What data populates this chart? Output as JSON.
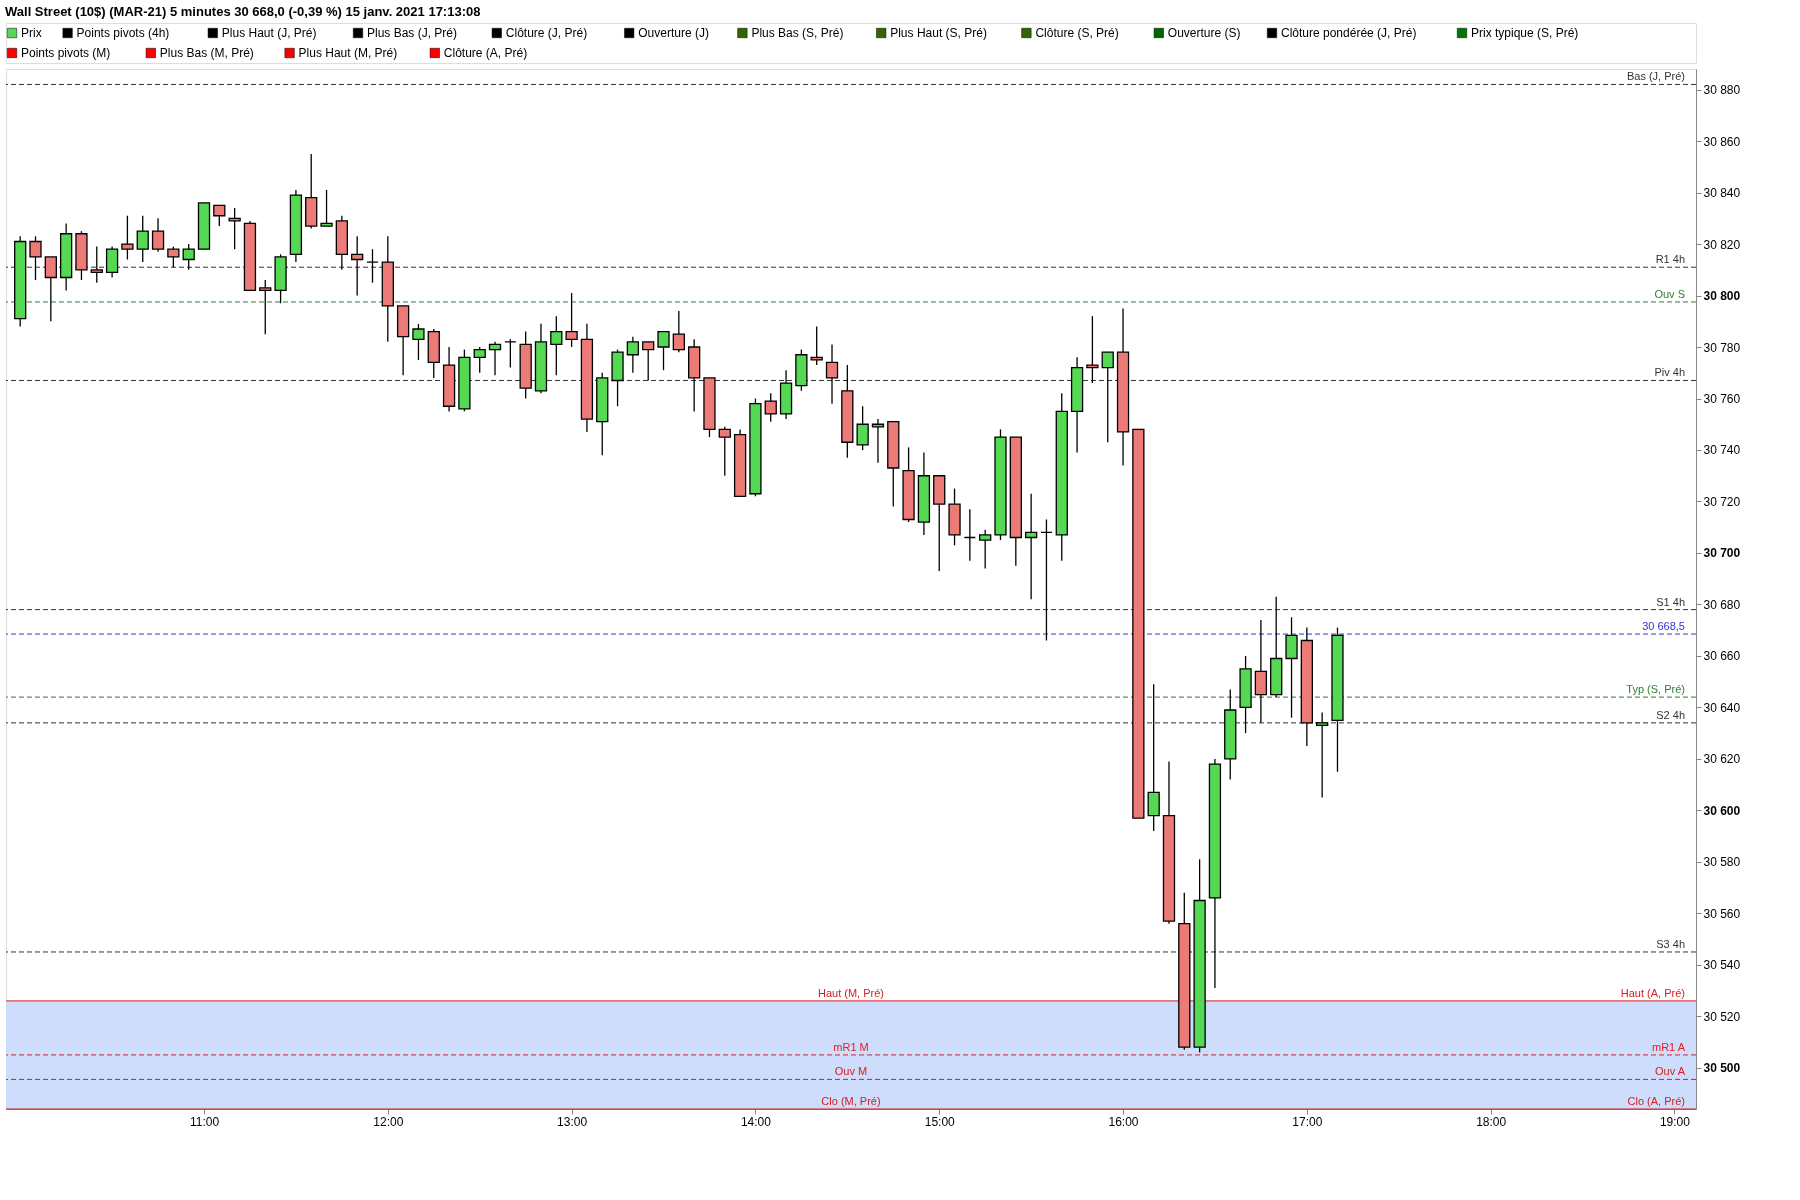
{
  "chart_data": {
    "type": "candlestick",
    "title": "Wall Street (10$) (MAR-21) 5 minutes 30 668,0 (-0,39 %) 15 janv. 2021 17:13:08",
    "legend": "top",
    "series": [
      {
        "name": "Prix",
        "color": "#55d955",
        "values": [
          null,
          null,
          null,
          null,
          null,
          null,
          null,
          null,
          null,
          null,
          null,
          null,
          null,
          null,
          null,
          null,
          null,
          null,
          null,
          null,
          null,
          null,
          null,
          null,
          null,
          null,
          null,
          null,
          null,
          null,
          null,
          null,
          null,
          null,
          null,
          null,
          null,
          null,
          null,
          null,
          null,
          null,
          null,
          null,
          null,
          null,
          null,
          null,
          null,
          null,
          null,
          null,
          null,
          null,
          null,
          null,
          null,
          null,
          null,
          null,
          null,
          null,
          null,
          null,
          null,
          null,
          null,
          null,
          null,
          null,
          null,
          null,
          null,
          null,
          null,
          null,
          null,
          null,
          null,
          null,
          null,
          null,
          null,
          null,
          null,
          null,
          null
        ]
      },
      {
        "name": "Points pivots (4h)",
        "color": "#000000",
        "values": [
          null,
          null,
          null,
          null,
          null,
          null,
          null,
          null,
          null,
          null,
          null,
          null,
          null,
          null,
          null,
          null,
          null,
          null,
          null,
          null,
          null,
          null,
          null,
          null,
          null,
          null,
          null,
          null,
          null,
          null,
          null,
          null,
          null,
          null,
          null,
          null,
          null,
          null,
          null,
          null,
          null,
          null,
          null,
          null,
          null,
          null,
          null,
          null,
          null,
          null,
          null,
          null,
          null,
          null,
          null,
          null,
          null,
          null,
          null,
          null,
          null,
          null,
          null,
          null,
          null,
          null,
          null,
          null,
          null,
          null,
          null,
          null,
          null,
          null,
          null,
          null,
          null,
          null,
          null,
          null,
          null,
          null,
          null,
          null,
          null,
          null,
          null
        ]
      },
      {
        "name": "Plus Haut (J, Pré)",
        "color": "#000000",
        "values": [
          null,
          null,
          null,
          null,
          null,
          null,
          null,
          null,
          null,
          null,
          null,
          null,
          null,
          null,
          null,
          null,
          null,
          null,
          null,
          null,
          null,
          null,
          null,
          null,
          null,
          null,
          null,
          null,
          null,
          null,
          null,
          null,
          null,
          null,
          null,
          null,
          null,
          null,
          null,
          null,
          null,
          null,
          null,
          null,
          null,
          null,
          null,
          null,
          null,
          null,
          null,
          null,
          null,
          null,
          null,
          null,
          null,
          null,
          null,
          null,
          null,
          null,
          null,
          null,
          null,
          null,
          null,
          null,
          null,
          null,
          null,
          null,
          null,
          null,
          null,
          null,
          null,
          null,
          null,
          null,
          null,
          null,
          null,
          null,
          null,
          null,
          null
        ]
      },
      {
        "name": "Plus Bas (J, Pré)",
        "color": "#000000",
        "values": [
          null,
          null,
          null,
          null,
          null,
          null,
          null,
          null,
          null,
          null,
          null,
          null,
          null,
          null,
          null,
          null,
          null,
          null,
          null,
          null,
          null,
          null,
          null,
          null,
          null,
          null,
          null,
          null,
          null,
          null,
          null,
          null,
          null,
          null,
          null,
          null,
          null,
          null,
          null,
          null,
          null,
          null,
          null,
          null,
          null,
          null,
          null,
          null,
          null,
          null,
          null,
          null,
          null,
          null,
          null,
          null,
          null,
          null,
          null,
          null,
          null,
          null,
          null,
          null,
          null,
          null,
          null,
          null,
          null,
          null,
          null,
          null,
          null,
          null,
          null,
          null,
          null,
          null,
          null,
          null,
          null,
          null,
          null,
          null,
          null,
          null,
          null
        ]
      },
      {
        "name": "Clôture (J, Pré)",
        "color": "#000000",
        "values": [
          null,
          null,
          null,
          null,
          null,
          null,
          null,
          null,
          null,
          null,
          null,
          null,
          null,
          null,
          null,
          null,
          null,
          null,
          null,
          null,
          null,
          null,
          null,
          null,
          null,
          null,
          null,
          null,
          null,
          null,
          null,
          null,
          null,
          null,
          null,
          null,
          null,
          null,
          null,
          null,
          null,
          null,
          null,
          null,
          null,
          null,
          null,
          null,
          null,
          null,
          null,
          null,
          null,
          null,
          null,
          null,
          null,
          null,
          null,
          null,
          null,
          null,
          null,
          null,
          null,
          null,
          null,
          null,
          null,
          null,
          null,
          null,
          null,
          null,
          null,
          null,
          null,
          null,
          null,
          null,
          null,
          null,
          null,
          null,
          null,
          null,
          null
        ]
      },
      {
        "name": "Ouverture (J)",
        "color": "#000000",
        "values": [
          null,
          null,
          null,
          null,
          null,
          null,
          null,
          null,
          null,
          null,
          null,
          null,
          null,
          null,
          null,
          null,
          null,
          null,
          null,
          null,
          null,
          null,
          null,
          null,
          null,
          null,
          null,
          null,
          null,
          null,
          null,
          null,
          null,
          null,
          null,
          null,
          null,
          null,
          null,
          null,
          null,
          null,
          null,
          null,
          null,
          null,
          null,
          null,
          null,
          null,
          null,
          null,
          null,
          null,
          null,
          null,
          null,
          null,
          null,
          null,
          null,
          null,
          null,
          null,
          null,
          null,
          null,
          null,
          null,
          null,
          null,
          null,
          null,
          null,
          null,
          null,
          null,
          null,
          null,
          null,
          null,
          null,
          null,
          null,
          null,
          null,
          null
        ]
      },
      {
        "name": "Plus Bas (S, Pré)",
        "color": "#336600",
        "values": [
          null,
          null,
          null,
          null,
          null,
          null,
          null,
          null,
          null,
          null,
          null,
          null,
          null,
          null,
          null,
          null,
          null,
          null,
          null,
          null,
          null,
          null,
          null,
          null,
          null,
          null,
          null,
          null,
          null,
          null,
          null,
          null,
          null,
          null,
          null,
          null,
          null,
          null,
          null,
          null,
          null,
          null,
          null,
          null,
          null,
          null,
          null,
          null,
          null,
          null,
          null,
          null,
          null,
          null,
          null,
          null,
          null,
          null,
          null,
          null,
          null,
          null,
          null,
          null,
          null,
          null,
          null,
          null,
          null,
          null,
          null,
          null,
          null,
          null,
          null,
          null,
          null,
          null,
          null,
          null,
          null,
          null,
          null,
          null,
          null,
          null,
          null
        ]
      },
      {
        "name": "Plus Haut (S, Pré)",
        "color": "#336600",
        "values": [
          null,
          null,
          null,
          null,
          null,
          null,
          null,
          null,
          null,
          null,
          null,
          null,
          null,
          null,
          null,
          null,
          null,
          null,
          null,
          null,
          null,
          null,
          null,
          null,
          null,
          null,
          null,
          null,
          null,
          null,
          null,
          null,
          null,
          null,
          null,
          null,
          null,
          null,
          null,
          null,
          null,
          null,
          null,
          null,
          null,
          null,
          null,
          null,
          null,
          null,
          null,
          null,
          null,
          null,
          null,
          null,
          null,
          null,
          null,
          null,
          null,
          null,
          null,
          null,
          null,
          null,
          null,
          null,
          null,
          null,
          null,
          null,
          null,
          null,
          null,
          null,
          null,
          null,
          null,
          null,
          null,
          null,
          null,
          null,
          null,
          null,
          null
        ]
      },
      {
        "name": "Clôture (S, Pré)",
        "color": "#336600",
        "values": [
          null,
          null,
          null,
          null,
          null,
          null,
          null,
          null,
          null,
          null,
          null,
          null,
          null,
          null,
          null,
          null,
          null,
          null,
          null,
          null,
          null,
          null,
          null,
          null,
          null,
          null,
          null,
          null,
          null,
          null,
          null,
          null,
          null,
          null,
          null,
          null,
          null,
          null,
          null,
          null,
          null,
          null,
          null,
          null,
          null,
          null,
          null,
          null,
          null,
          null,
          null,
          null,
          null,
          null,
          null,
          null,
          null,
          null,
          null,
          null,
          null,
          null,
          null,
          null,
          null,
          null,
          null,
          null,
          null,
          null,
          null,
          null,
          null,
          null,
          null,
          null,
          null,
          null,
          null,
          null,
          null,
          null,
          null,
          null,
          null,
          null,
          null
        ]
      },
      {
        "name": "Ouverture (S)",
        "color": "#006600",
        "values": [
          null,
          null,
          null,
          null,
          null,
          null,
          null,
          null,
          null,
          null,
          null,
          null,
          null,
          null,
          null,
          null,
          null,
          null,
          null,
          null,
          null,
          null,
          null,
          null,
          null,
          null,
          null,
          null,
          null,
          null,
          null,
          null,
          null,
          null,
          null,
          null,
          null,
          null,
          null,
          null,
          null,
          null,
          null,
          null,
          null,
          null,
          null,
          null,
          null,
          null,
          null,
          null,
          null,
          null,
          null,
          null,
          null,
          null,
          null,
          null,
          null,
          null,
          null,
          null,
          null,
          null,
          null,
          null,
          null,
          null,
          null,
          null,
          null,
          null,
          null,
          null,
          null,
          null,
          null,
          null,
          null,
          null,
          null,
          null,
          null,
          null,
          null
        ]
      },
      {
        "name": "Clôture pondérée (J, Pré)",
        "color": "#000000",
        "values": [
          null,
          null,
          null,
          null,
          null,
          null,
          null,
          null,
          null,
          null,
          null,
          null,
          null,
          null,
          null,
          null,
          null,
          null,
          null,
          null,
          null,
          null,
          null,
          null,
          null,
          null,
          null,
          null,
          null,
          null,
          null,
          null,
          null,
          null,
          null,
          null,
          null,
          null,
          null,
          null,
          null,
          null,
          null,
          null,
          null,
          null,
          null,
          null,
          null,
          null,
          null,
          null,
          null,
          null,
          null,
          null,
          null,
          null,
          null,
          null,
          null,
          null,
          null,
          null,
          null,
          null,
          null,
          null,
          null,
          null,
          null,
          null,
          null,
          null,
          null,
          null,
          null,
          null,
          null,
          null,
          null,
          null,
          null,
          null,
          null,
          null,
          null
        ]
      },
      {
        "name": "Prix typique (S, Pré)",
        "color": "#007700",
        "values": [
          null,
          null,
          null,
          null,
          null,
          null,
          null,
          null,
          null,
          null,
          null,
          null,
          null,
          null,
          null,
          null,
          null,
          null,
          null,
          null,
          null,
          null,
          null,
          null,
          null,
          null,
          null,
          null,
          null,
          null,
          null,
          null,
          null,
          null,
          null,
          null,
          null,
          null,
          null,
          null,
          null,
          null,
          null,
          null,
          null,
          null,
          null,
          null,
          null,
          null,
          null,
          null,
          null,
          null,
          null,
          null,
          null,
          null,
          null,
          null,
          null,
          null,
          null,
          null,
          null,
          null,
          null,
          null,
          null,
          null,
          null,
          null,
          null,
          null,
          null,
          null,
          null,
          null,
          null,
          null,
          null,
          null,
          null,
          null,
          null,
          null,
          null
        ]
      },
      {
        "name": "Points pivots (M)",
        "color": "#ff0000",
        "values": [
          null,
          null,
          null,
          null,
          null,
          null,
          null,
          null,
          null,
          null,
          null,
          null,
          null,
          null,
          null,
          null,
          null,
          null,
          null,
          null,
          null,
          null,
          null,
          null,
          null,
          null,
          null,
          null,
          null,
          null,
          null,
          null,
          null,
          null,
          null,
          null,
          null,
          null,
          null,
          null,
          null,
          null,
          null,
          null,
          null,
          null,
          null,
          null,
          null,
          null,
          null,
          null,
          null,
          null,
          null,
          null,
          null,
          null,
          null,
          null,
          null,
          null,
          null,
          null,
          null,
          null,
          null,
          null,
          null,
          null,
          null,
          null,
          null,
          null,
          null,
          null,
          null,
          null,
          null,
          null,
          null,
          null,
          null,
          null,
          null,
          null,
          null
        ]
      },
      {
        "name": "Plus Bas (M, Pré)",
        "color": "#ff0000",
        "values": [
          null,
          null,
          null,
          null,
          null,
          null,
          null,
          null,
          null,
          null,
          null,
          null,
          null,
          null,
          null,
          null,
          null,
          null,
          null,
          null,
          null,
          null,
          null,
          null,
          null,
          null,
          null,
          null,
          null,
          null,
          null,
          null,
          null,
          null,
          null,
          null,
          null,
          null,
          null,
          null,
          null,
          null,
          null,
          null,
          null,
          null,
          null,
          null,
          null,
          null,
          null,
          null,
          null,
          null,
          null,
          null,
          null,
          null,
          null,
          null,
          null,
          null,
          null,
          null,
          null,
          null,
          null,
          null,
          null,
          null,
          null,
          null,
          null,
          null,
          null,
          null,
          null,
          null,
          null,
          null,
          null,
          null,
          null,
          null,
          null,
          null,
          null
        ]
      },
      {
        "name": "Plus Haut (M, Pré)",
        "color": "#ff0000",
        "values": [
          null,
          null,
          null,
          null,
          null,
          null,
          null,
          null,
          null,
          null,
          null,
          null,
          null,
          null,
          null,
          null,
          null,
          null,
          null,
          null,
          null,
          null,
          null,
          null,
          null,
          null,
          null,
          null,
          null,
          null,
          null,
          null,
          null,
          null,
          null,
          null,
          null,
          null,
          null,
          null,
          null,
          null,
          null,
          null,
          null,
          null,
          null,
          null,
          null,
          null,
          null,
          null,
          null,
          null,
          null,
          null,
          null,
          null,
          null,
          null,
          null,
          null,
          null,
          null,
          null,
          null,
          null,
          null,
          null,
          null,
          null,
          null,
          null,
          null,
          null,
          null,
          null,
          null,
          null,
          null,
          null,
          null,
          null,
          null,
          null,
          null,
          null
        ]
      },
      {
        "name": "Clôture (A, Pré)",
        "color": "#ff0000",
        "values": [
          null,
          null,
          null,
          null,
          null,
          null,
          null,
          null,
          null,
          null,
          null,
          null,
          null,
          null,
          null,
          null,
          null,
          null,
          null,
          null,
          null,
          null,
          null,
          null,
          null,
          null,
          null,
          null,
          null,
          null,
          null,
          null,
          null,
          null,
          null,
          null,
          null,
          null,
          null,
          null,
          null,
          null,
          null,
          null,
          null,
          null,
          null,
          null,
          null,
          null,
          null,
          null,
          null,
          null,
          null,
          null,
          null,
          null,
          null,
          null,
          null,
          null,
          null,
          null,
          null,
          null,
          null,
          null,
          null,
          null,
          null,
          null,
          null,
          null,
          null,
          null,
          null,
          null,
          null,
          null,
          null,
          null,
          null,
          null,
          null,
          null,
          null
        ]
      }
    ],
    "annotations": [
      {
        "text": "Haut (A, Pré)",
        "y": 30526
      },
      {
        "text": "mR1 A",
        "y": 30505
      },
      {
        "text": "Ouv A",
        "y": 30495.5
      },
      {
        "text": "Clo (A, Pré)",
        "y": 30484
      }
    ],
    "x": [
      10,
      10.0833,
      10.1667,
      10.25,
      10.3333,
      10.4167,
      10.5,
      10.5833,
      10.6667,
      10.75,
      10.8333,
      10.9167,
      11,
      11.0833,
      11.1667,
      11.25,
      11.3333,
      11.4167,
      11.5,
      11.5833,
      11.6667,
      11.75,
      11.8333,
      11.9167,
      12,
      12.0833,
      12.1667,
      12.25,
      12.3333,
      12.4167,
      12.5,
      12.5833,
      12.6667,
      12.75,
      12.8333,
      12.9167,
      13,
      13.0833,
      13.1667,
      13.25,
      13.3333,
      13.4167,
      13.5,
      13.5833,
      13.6667,
      13.75,
      13.8333,
      13.9167,
      14,
      14.0833,
      14.1667,
      14.25,
      14.3333,
      14.4167,
      14.5,
      14.5833,
      14.6667,
      14.75,
      14.8333,
      14.9167,
      15,
      15.0833,
      15.1667,
      15.25,
      15.3333,
      15.4167,
      15.5,
      15.5833,
      15.6667,
      15.75,
      15.8333,
      15.9167,
      16,
      16.0833,
      16.1667,
      16.25,
      16.3333,
      16.4167,
      16.5,
      16.5833,
      16.6667,
      16.75,
      16.8333,
      16.9167,
      17,
      17.0833,
      17.1667
    ],
    "ohlc": [
      [
        30791,
        30823,
        30788,
        30821
      ],
      [
        30821,
        30823,
        30806,
        30815
      ],
      [
        30815,
        30815,
        30790,
        30807
      ],
      [
        30807,
        30828,
        30802,
        30824
      ],
      [
        30824,
        30825,
        30806,
        30810
      ],
      [
        30810,
        30819,
        30805,
        30809
      ],
      [
        30809,
        30819,
        30807,
        30818
      ],
      [
        30820,
        30831,
        30814,
        30818
      ],
      [
        30818,
        30831,
        30813,
        30825
      ],
      [
        30825,
        30830,
        30817,
        30818
      ],
      [
        30818,
        30819,
        30811,
        30815
      ],
      [
        30814,
        30820,
        30810,
        30818
      ],
      [
        30818,
        30836,
        30818,
        30836
      ],
      [
        30835,
        30835,
        30827,
        30831
      ],
      [
        30830,
        30834,
        30818,
        30829
      ],
      [
        30828,
        30829,
        30802,
        30802
      ],
      [
        30803,
        30806,
        30785,
        30802
      ],
      [
        30802,
        30816,
        30797,
        30815
      ],
      [
        30816,
        30841,
        30813,
        30839
      ],
      [
        30838,
        30855,
        30826,
        30827
      ],
      [
        30827,
        30841,
        30827,
        30828
      ],
      [
        30829,
        30831,
        30810,
        30816
      ],
      [
        30816,
        30823,
        30800,
        30814
      ],
      [
        30813,
        30818,
        30805,
        30813
      ],
      [
        30813,
        30823,
        30782,
        30796
      ],
      [
        30796,
        30796,
        30769,
        30784
      ],
      [
        30783,
        30789,
        30775,
        30787
      ],
      [
        30786,
        30787,
        30768,
        30774
      ],
      [
        30773,
        30780,
        30755,
        30757
      ],
      [
        30756,
        30779,
        30755,
        30776
      ],
      [
        30776,
        30780,
        30770,
        30779
      ],
      [
        30779,
        30782,
        30769,
        30781
      ],
      [
        30782,
        30783,
        30772,
        30782
      ],
      [
        30781,
        30786,
        30760,
        30764
      ],
      [
        30763,
        30789,
        30762,
        30782
      ],
      [
        30781,
        30792,
        30769,
        30786
      ],
      [
        30786,
        30801,
        30780,
        30783
      ],
      [
        30783,
        30789,
        30747,
        30752
      ],
      [
        30751,
        30770,
        30738,
        30768
      ],
      [
        30767,
        30779,
        30757,
        30778
      ],
      [
        30777,
        30784,
        30770,
        30782
      ],
      [
        30782,
        30782,
        30767,
        30779
      ],
      [
        30780,
        30786,
        30771,
        30786
      ],
      [
        30785,
        30794,
        30778,
        30779
      ],
      [
        30780,
        30783,
        30755,
        30768
      ],
      [
        30768,
        30768,
        30745,
        30748
      ],
      [
        30748,
        30749,
        30730,
        30745
      ],
      [
        30746,
        30748,
        30722,
        30722
      ],
      [
        30723,
        30760,
        30722,
        30758
      ],
      [
        30759,
        30762,
        30751,
        30754
      ],
      [
        30754,
        30771,
        30752,
        30766
      ],
      [
        30765,
        30779,
        30763,
        30777
      ],
      [
        30776,
        30788,
        30773,
        30775
      ],
      [
        30774,
        30781,
        30758,
        30768
      ],
      [
        30763,
        30773,
        30737,
        30743
      ],
      [
        30742,
        30757,
        30740,
        30750
      ],
      [
        30749,
        30752,
        30735,
        30750
      ],
      [
        30751,
        30751,
        30718,
        30733
      ],
      [
        30732,
        30741,
        30712,
        30713
      ],
      [
        30712,
        30739,
        30707,
        30730
      ],
      [
        30730,
        30730,
        30693,
        30719
      ],
      [
        30719,
        30725,
        30703,
        30707
      ],
      [
        30706,
        30717,
        30697,
        30706
      ],
      [
        30705,
        30709,
        30694,
        30707
      ],
      [
        30707,
        30748,
        30705,
        30745
      ],
      [
        30745,
        30745,
        30695,
        30706
      ],
      [
        30706,
        30723,
        30682,
        30708
      ],
      [
        30708,
        30713,
        30666,
        30708
      ],
      [
        30707,
        30762,
        30697,
        30755
      ],
      [
        30755,
        30776,
        30739,
        30772
      ],
      [
        30773,
        30792,
        30766,
        30772
      ],
      [
        30772,
        30778,
        30743,
        30778
      ],
      [
        30778,
        30795,
        30734,
        30747
      ],
      [
        30748,
        30748,
        30597,
        30597
      ],
      [
        30598,
        30649,
        30592,
        30607
      ],
      [
        30598,
        30619,
        30556,
        30557
      ],
      [
        30556,
        30568,
        30507,
        30508
      ],
      [
        30508,
        30581,
        30506,
        30565
      ],
      [
        30566,
        30620,
        30531,
        30618
      ],
      [
        30620,
        30647,
        30612,
        30639
      ],
      [
        30640,
        30660,
        30630,
        30655
      ],
      [
        30654,
        30674,
        30634,
        30645
      ],
      [
        30645,
        30683,
        30644,
        30659
      ],
      [
        30659,
        30675,
        30636,
        30668
      ],
      [
        30666,
        30671,
        30625,
        30634
      ],
      [
        30633,
        30638,
        30605,
        30634
      ],
      [
        30635,
        30671,
        30615,
        30668
      ]
    ],
    "colors": [
      "#55d955",
      "#ec7b78",
      "#ec7b78",
      "#55d955",
      "#ec7b78",
      "#ec7b78",
      "#55d955",
      "#ec7b78",
      "#55d955",
      "#ec7b78",
      "#ec7b78",
      "#55d955",
      "#55d955",
      "#ec7b78",
      "#ec7b78",
      "#ec7b78",
      "#ec7b78",
      "#55d955",
      "#55d955",
      "#ec7b78",
      "#55d955",
      "#ec7b78",
      "#ec7b78",
      "#000000",
      "#ec7b78",
      "#ec7b78",
      "#55d955",
      "#ec7b78",
      "#ec7b78",
      "#55d955",
      "#55d955",
      "#55d955",
      "#000000",
      "#ec7b78",
      "#55d955",
      "#55d955",
      "#ec7b78",
      "#ec7b78",
      "#55d955",
      "#55d955",
      "#55d955",
      "#ec7b78",
      "#55d955",
      "#ec7b78",
      "#ec7b78",
      "#ec7b78",
      "#ec7b78",
      "#ec7b78",
      "#55d955",
      "#ec7b78",
      "#55d955",
      "#55d955",
      "#ec7b78",
      "#ec7b78",
      "#ec7b78",
      "#55d955",
      "#55d955",
      "#ec7b78",
      "#ec7b78",
      "#55d955",
      "#ec7b78",
      "#ec7b78",
      "#000000",
      "#55d955",
      "#55d955",
      "#ec7b78",
      "#55d955",
      "#000000",
      "#55d955",
      "#55d955",
      "#ec7b78",
      "#55d955",
      "#ec7b78",
      "#ec7b78",
      "#55d955",
      "#ec7b78",
      "#ec7b78",
      "#55d955",
      "#55d955",
      "#55d955",
      "#55d955",
      "#ec7b78",
      "#55d955",
      "#55d955",
      "#ec7b78",
      "#55d955",
      "#55d955"
    ],
    "xlim": [
      9.95,
      19.09
    ],
    "xticks": [
      {
        "value": 11,
        "label": "11:00"
      },
      {
        "value": 12,
        "label": "12:00"
      },
      {
        "value": 13,
        "label": "13:00"
      },
      {
        "value": 14,
        "label": "14:00"
      },
      {
        "value": 15,
        "label": "15:00"
      },
      {
        "value": 16,
        "label": "16:00"
      },
      {
        "value": 17,
        "label": "17:00"
      },
      {
        "value": 18,
        "label": "18:00"
      },
      {
        "value": 19,
        "label": "19:00"
      }
    ],
    "ylim": [
      30484,
      30888
    ],
    "yticks": [
      {
        "value": 30500,
        "label": "30 500"
      },
      {
        "value": 30520,
        "label": "30 520"
      },
      {
        "value": 30540,
        "label": "30 540"
      },
      {
        "value": 30560,
        "label": "30 560"
      },
      {
        "value": 30580,
        "label": "30 580"
      },
      {
        "value": 30600,
        "label": "30 600"
      },
      {
        "value": 30620,
        "label": "30 620"
      },
      {
        "value": 30640,
        "label": "30 640"
      },
      {
        "value": 30660,
        "label": "30 660"
      },
      {
        "value": 30680,
        "label": "30 680"
      },
      {
        "value": 30700,
        "label": "30 700"
      },
      {
        "value": 30720,
        "label": "30 720"
      },
      {
        "value": 30740,
        "label": "30 740"
      },
      {
        "value": 30760,
        "label": "30 760"
      },
      {
        "value": 30780,
        "label": "30 780"
      },
      {
        "value": 30800,
        "label": "30 800"
      },
      {
        "value": 30820,
        "label": "30 820"
      },
      {
        "value": 30840,
        "label": "30 840"
      },
      {
        "value": 30860,
        "label": "30 860"
      },
      {
        "value": 30880,
        "label": "30 880"
      }
    ],
    "bands": [
      {
        "axis": "y",
        "from": 30484,
        "to": 30526,
        "color": "#c9d9fb"
      }
    ],
    "ref_lines": [
      {
        "axis": "y",
        "value": 30882,
        "label": "Bas (J, Pré)",
        "color": "#333333",
        "line_style": "dashed"
      },
      {
        "axis": "y",
        "value": 30811,
        "label": "R1 4h",
        "color": "#333333",
        "line_style": "dashed"
      },
      {
        "axis": "y",
        "value": 30797.5,
        "label": "Ouv S",
        "color": "#2e7d32",
        "line_style": "dashed"
      },
      {
        "axis": "y",
        "value": 30767,
        "label": "Piv 4h",
        "color": "#333333",
        "line_style": "dashed"
      },
      {
        "axis": "y",
        "value": 30678,
        "label": "S1 4h",
        "color": "#333333",
        "line_style": "dashed"
      },
      {
        "axis": "y",
        "value": 30668.5,
        "label": "30 668,5",
        "color": "#3333cc",
        "line_style": "dashed"
      },
      {
        "axis": "y",
        "value": 30644,
        "label": "Typ (S, Pré)",
        "color": "#2e7d32",
        "line_style": "dashed"
      },
      {
        "axis": "y",
        "value": 30634,
        "label": "S2 4h",
        "color": "#333333",
        "line_style": "dashed"
      },
      {
        "axis": "y",
        "value": 30545,
        "label": "S3 4h",
        "color": "#333333",
        "line_style": "dashed"
      },
      {
        "axis": "y",
        "value": 30526,
        "label": "Haut (M, Pré)",
        "color": "#d42020",
        "line_style": "solid"
      },
      {
        "axis": "y",
        "value": 30505,
        "label": "mR1 M",
        "color": "#e02020",
        "line_style": "dashed"
      },
      {
        "axis": "y",
        "value": 30495.5,
        "label": "Ouv M",
        "color": "#d42020",
        "line_style": "dashed"
      },
      {
        "axis": "y",
        "value": 30484,
        "label": "Clo (M, Pré)",
        "color": "#d42020",
        "line_style": "solid"
      }
    ]
  }
}
